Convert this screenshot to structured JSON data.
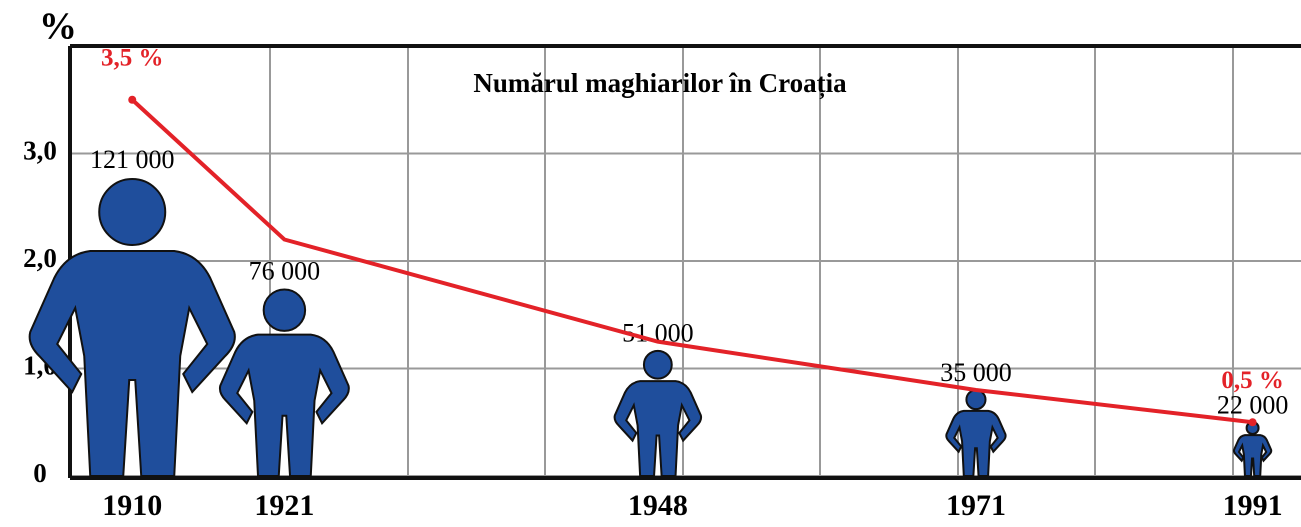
{
  "chart_data": {
    "type": "line",
    "title": "Numărul maghiarilor în Croația",
    "ylabel": "%",
    "x": [
      1910,
      1921,
      1948,
      1971,
      1991
    ],
    "xlim": [
      1905.5,
      1994.5
    ],
    "xticks": [
      1910,
      1921,
      1948,
      1971,
      1991
    ],
    "ylim": [
      0,
      4
    ],
    "yticks": [
      0,
      {
        "value": 1,
        "label": "1,0"
      },
      {
        "value": 2,
        "label": "2,0"
      },
      {
        "value": 3,
        "label": "3,0"
      }
    ],
    "grid": true,
    "series": [
      {
        "color": "#e32228",
        "values": [
          3.5,
          2.2,
          1.25,
          0.8,
          0.5
        ],
        "value_labels": [
          "3,5 %",
          null,
          null,
          null,
          "0,5 %"
        ]
      }
    ],
    "population": {
      "color": "#1f4e9c",
      "values": [
        121000,
        76000,
        51000,
        35000,
        22000
      ],
      "value_labels": [
        "121 000",
        "76 000",
        "51 000",
        "35 000",
        "22 000"
      ]
    }
  }
}
